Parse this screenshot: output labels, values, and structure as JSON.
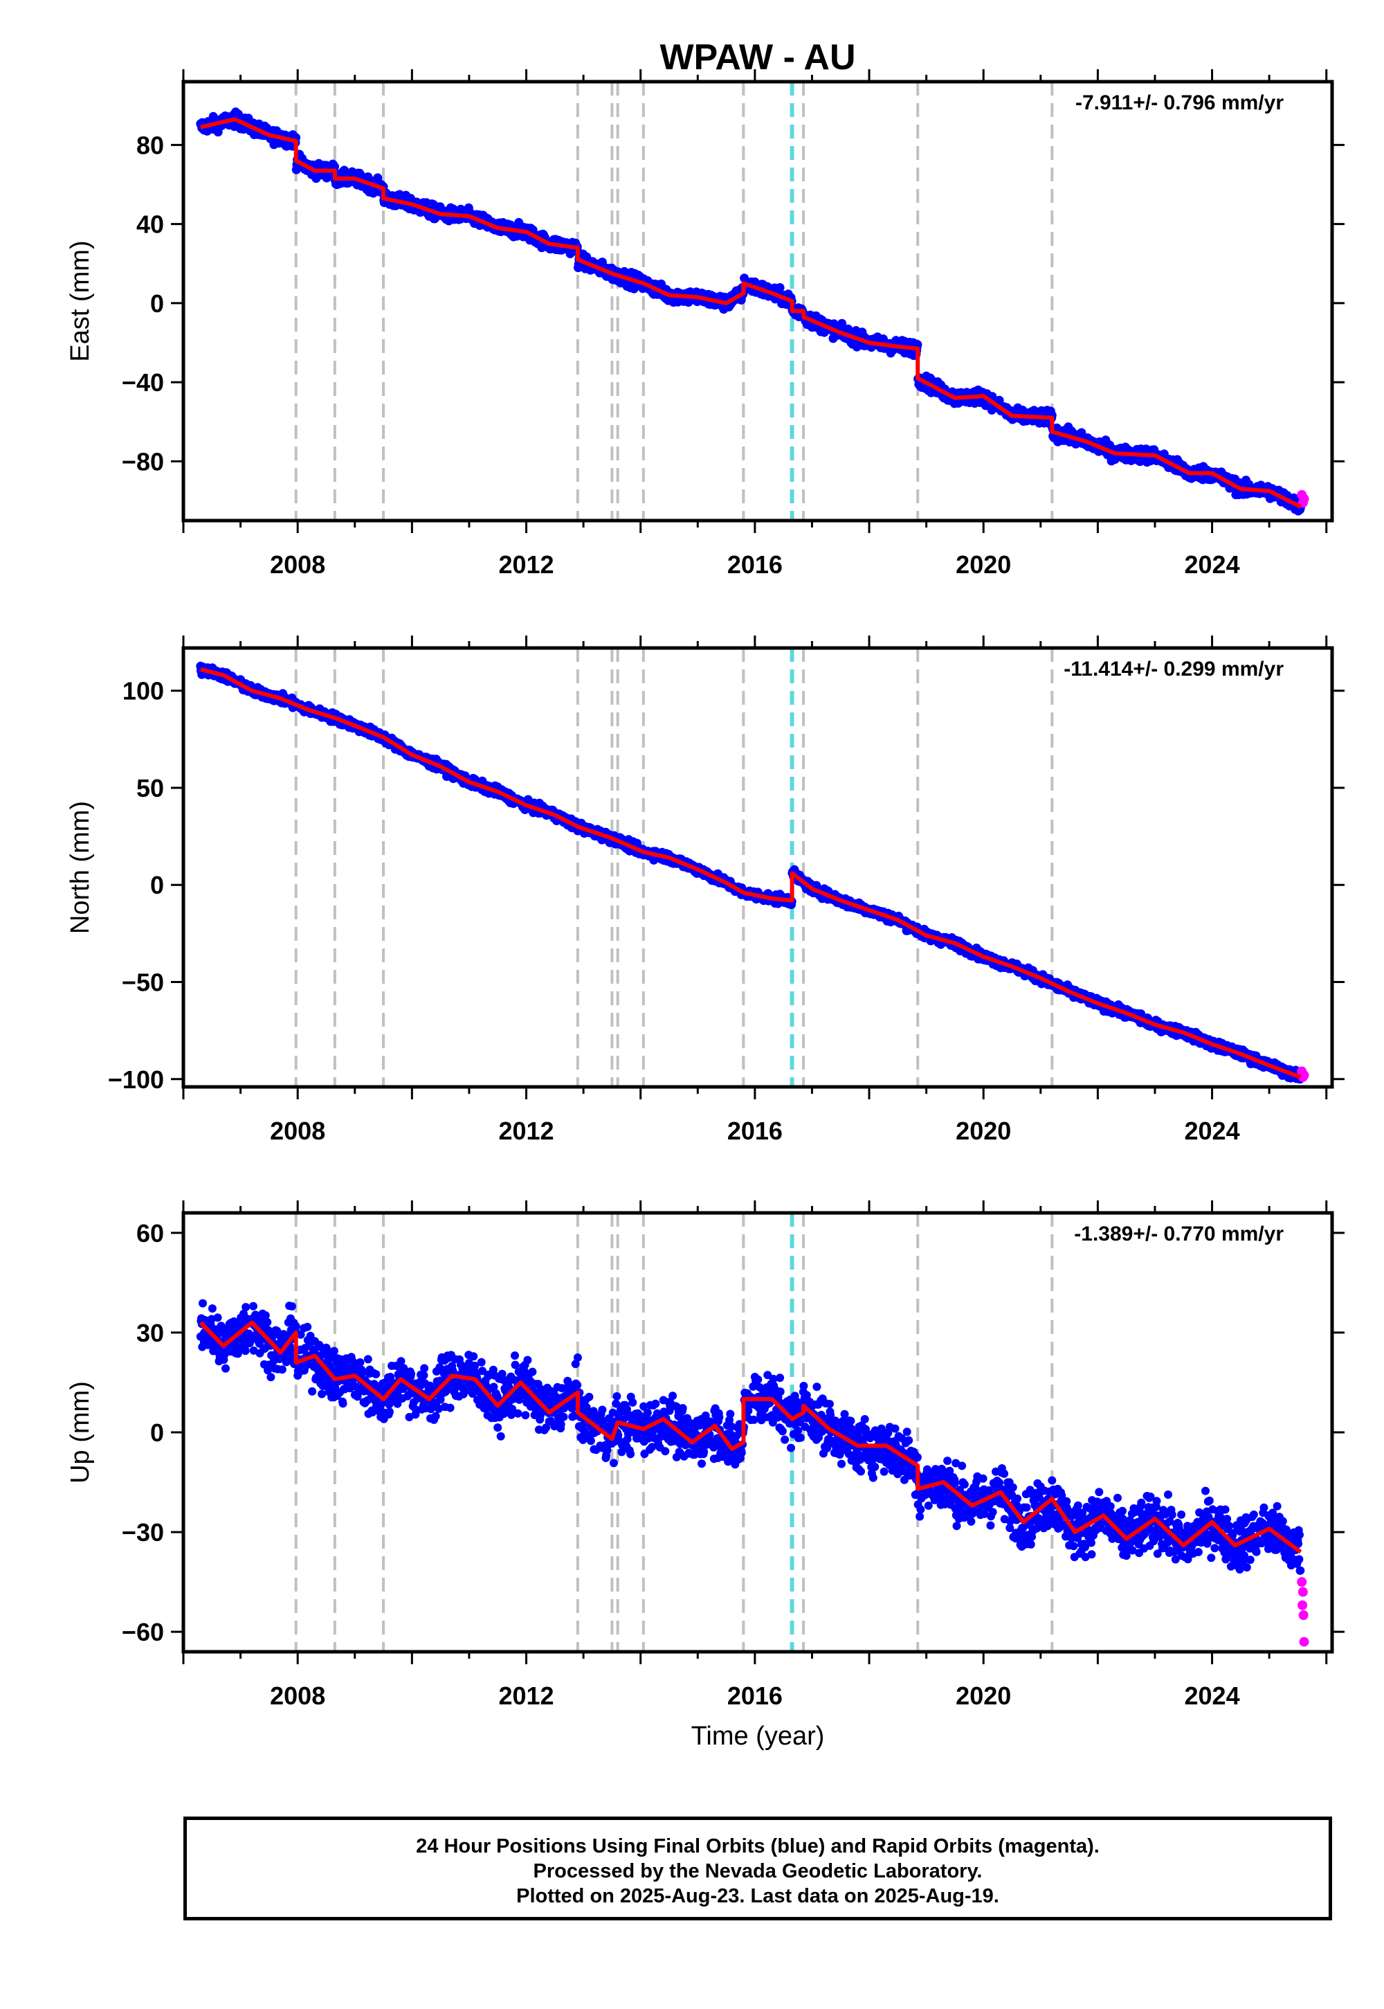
{
  "chart_data": {
    "type": "scatter",
    "title": "WPAW - AU",
    "xlabel": "Time (year)",
    "xlim": [
      2006.0,
      2026.1
    ],
    "x_ticks": [
      2008,
      2012,
      2016,
      2020,
      2024
    ],
    "x_tick_labels": [
      "2008",
      "2012",
      "2016",
      "2020",
      "2024"
    ],
    "grid": false,
    "legend": "none",
    "colors": {
      "final_orbits": "#0000ff",
      "rapid_orbits": "#ff00ff",
      "model": "#ff0000",
      "event_lines": "#c0c0c0",
      "equipment_change": "#5fd8dc"
    },
    "event_lines_gray": [
      2007.97,
      2008.65,
      2009.5,
      2012.9,
      2013.5,
      2013.6,
      2014.05,
      2015.8,
      2016.85,
      2018.85,
      2021.2
    ],
    "event_lines_cyan": [
      2016.65
    ],
    "panels": [
      {
        "component": "east",
        "ylabel": "East (mm)",
        "ylim": [
          -110,
          112
        ],
        "y_ticks": [
          80,
          40,
          0,
          -40,
          -80
        ],
        "y_tick_labels": [
          "80",
          "40",
          "0",
          "−40",
          "−80"
        ],
        "velocity_label": "-7.911+/- 0.796 mm/yr",
        "model": [
          [
            2006.3,
            89
          ],
          [
            2006.9,
            93
          ],
          [
            2007.5,
            85
          ],
          [
            2007.97,
            82
          ],
          [
            2007.97,
            72
          ],
          [
            2008.3,
            67
          ],
          [
            2008.65,
            67
          ],
          [
            2008.65,
            63
          ],
          [
            2009.0,
            63
          ],
          [
            2009.5,
            58
          ],
          [
            2009.5,
            53
          ],
          [
            2010.0,
            50
          ],
          [
            2010.5,
            45
          ],
          [
            2011.0,
            44
          ],
          [
            2011.5,
            38
          ],
          [
            2012.0,
            36
          ],
          [
            2012.4,
            30
          ],
          [
            2012.9,
            28
          ],
          [
            2012.9,
            22
          ],
          [
            2013.5,
            15
          ],
          [
            2013.6,
            14
          ],
          [
            2014.05,
            10
          ],
          [
            2014.5,
            4
          ],
          [
            2015.0,
            3
          ],
          [
            2015.5,
            0
          ],
          [
            2015.8,
            5
          ],
          [
            2015.8,
            10
          ],
          [
            2016.3,
            5
          ],
          [
            2016.65,
            1
          ],
          [
            2016.65,
            -4
          ],
          [
            2016.85,
            -4
          ],
          [
            2016.85,
            -7
          ],
          [
            2017.5,
            -15
          ],
          [
            2018.0,
            -20
          ],
          [
            2018.5,
            -22
          ],
          [
            2018.85,
            -23
          ],
          [
            2018.85,
            -38
          ],
          [
            2019.5,
            -48
          ],
          [
            2020.0,
            -47
          ],
          [
            2020.5,
            -57
          ],
          [
            2021.2,
            -58
          ],
          [
            2021.2,
            -65
          ],
          [
            2021.8,
            -70
          ],
          [
            2022.3,
            -76
          ],
          [
            2023.0,
            -77
          ],
          [
            2023.6,
            -86
          ],
          [
            2024.0,
            -86
          ],
          [
            2024.5,
            -94
          ],
          [
            2025.0,
            -95
          ],
          [
            2025.55,
            -103
          ]
        ],
        "rapid_points": [
          [
            2025.57,
            -97
          ],
          [
            2025.59,
            -101
          ],
          [
            2025.61,
            -99
          ]
        ]
      },
      {
        "component": "north",
        "ylabel": "North (mm)",
        "ylim": [
          -104,
          122
        ],
        "y_ticks": [
          100,
          50,
          0,
          -50,
          -100
        ],
        "y_tick_labels": [
          "100",
          "50",
          "0",
          "−50",
          "−100"
        ],
        "velocity_label": "-11.414+/- 0.299 mm/yr",
        "model": [
          [
            2006.3,
            111
          ],
          [
            2006.7,
            108
          ],
          [
            2007.2,
            100
          ],
          [
            2007.7,
            96
          ],
          [
            2008.2,
            90
          ],
          [
            2008.65,
            86
          ],
          [
            2009.0,
            82
          ],
          [
            2009.5,
            76
          ],
          [
            2010.0,
            67
          ],
          [
            2010.5,
            61
          ],
          [
            2011.0,
            53
          ],
          [
            2011.5,
            48
          ],
          [
            2012.0,
            41
          ],
          [
            2012.5,
            36
          ],
          [
            2012.9,
            30
          ],
          [
            2013.5,
            24
          ],
          [
            2014.05,
            17
          ],
          [
            2014.5,
            14
          ],
          [
            2015.0,
            8
          ],
          [
            2015.5,
            1
          ],
          [
            2015.8,
            -4
          ],
          [
            2016.3,
            -7
          ],
          [
            2016.65,
            -8
          ],
          [
            2016.65,
            6
          ],
          [
            2017.0,
            -2
          ],
          [
            2017.5,
            -8
          ],
          [
            2018.0,
            -13
          ],
          [
            2018.5,
            -18
          ],
          [
            2019.0,
            -26
          ],
          [
            2019.5,
            -30
          ],
          [
            2020.0,
            -37
          ],
          [
            2020.5,
            -42
          ],
          [
            2021.0,
            -48
          ],
          [
            2021.5,
            -55
          ],
          [
            2022.0,
            -61
          ],
          [
            2022.5,
            -66
          ],
          [
            2023.0,
            -72
          ],
          [
            2023.5,
            -76
          ],
          [
            2024.0,
            -82
          ],
          [
            2024.5,
            -87
          ],
          [
            2025.0,
            -93
          ],
          [
            2025.55,
            -99
          ]
        ],
        "rapid_points": [
          [
            2025.57,
            -96
          ],
          [
            2025.59,
            -99
          ],
          [
            2025.61,
            -98
          ]
        ]
      },
      {
        "component": "up",
        "ylabel": "Up (mm)",
        "ylim": [
          -66,
          66
        ],
        "y_ticks": [
          60,
          30,
          0,
          -30,
          -60
        ],
        "y_tick_labels": [
          "60",
          "30",
          "0",
          "−30",
          "−60"
        ],
        "velocity_label": "-1.389+/- 0.770 mm/yr",
        "model": [
          [
            2006.3,
            33
          ],
          [
            2006.7,
            26
          ],
          [
            2007.2,
            33
          ],
          [
            2007.7,
            24
          ],
          [
            2007.97,
            30
          ],
          [
            2007.97,
            21
          ],
          [
            2008.3,
            23
          ],
          [
            2008.65,
            16
          ],
          [
            2009.0,
            17
          ],
          [
            2009.5,
            10
          ],
          [
            2009.8,
            16
          ],
          [
            2010.3,
            10
          ],
          [
            2010.7,
            17
          ],
          [
            2011.1,
            16
          ],
          [
            2011.5,
            8
          ],
          [
            2011.9,
            15
          ],
          [
            2012.4,
            6
          ],
          [
            2012.9,
            12
          ],
          [
            2012.9,
            6
          ],
          [
            2013.5,
            -2
          ],
          [
            2013.6,
            3
          ],
          [
            2014.05,
            1
          ],
          [
            2014.4,
            4
          ],
          [
            2014.9,
            -3
          ],
          [
            2015.3,
            2
          ],
          [
            2015.6,
            -5
          ],
          [
            2015.8,
            -3
          ],
          [
            2015.8,
            10
          ],
          [
            2016.3,
            10
          ],
          [
            2016.65,
            4
          ],
          [
            2016.85,
            6
          ],
          [
            2016.85,
            8
          ],
          [
            2017.3,
            1
          ],
          [
            2017.8,
            -4
          ],
          [
            2018.3,
            -4
          ],
          [
            2018.85,
            -10
          ],
          [
            2018.85,
            -17
          ],
          [
            2019.3,
            -15
          ],
          [
            2019.8,
            -22
          ],
          [
            2020.3,
            -18
          ],
          [
            2020.7,
            -27
          ],
          [
            2021.2,
            -20
          ],
          [
            2021.6,
            -30
          ],
          [
            2022.1,
            -25
          ],
          [
            2022.5,
            -32
          ],
          [
            2023.0,
            -26
          ],
          [
            2023.5,
            -34
          ],
          [
            2024.0,
            -27
          ],
          [
            2024.4,
            -34
          ],
          [
            2025.0,
            -29
          ],
          [
            2025.55,
            -36
          ]
        ],
        "rapid_points": [
          [
            2025.57,
            -45
          ],
          [
            2025.58,
            -52
          ],
          [
            2025.59,
            -48
          ],
          [
            2025.6,
            -55
          ],
          [
            2025.61,
            -63
          ]
        ]
      }
    ]
  },
  "footer": {
    "line1": "24 Hour Positions Using Final Orbits (blue) and Rapid Orbits (magenta).",
    "line2": "Processed by the Nevada Geodetic Laboratory.",
    "line3": "Plotted on 2025-Aug-23. Last data on 2025-Aug-19."
  }
}
